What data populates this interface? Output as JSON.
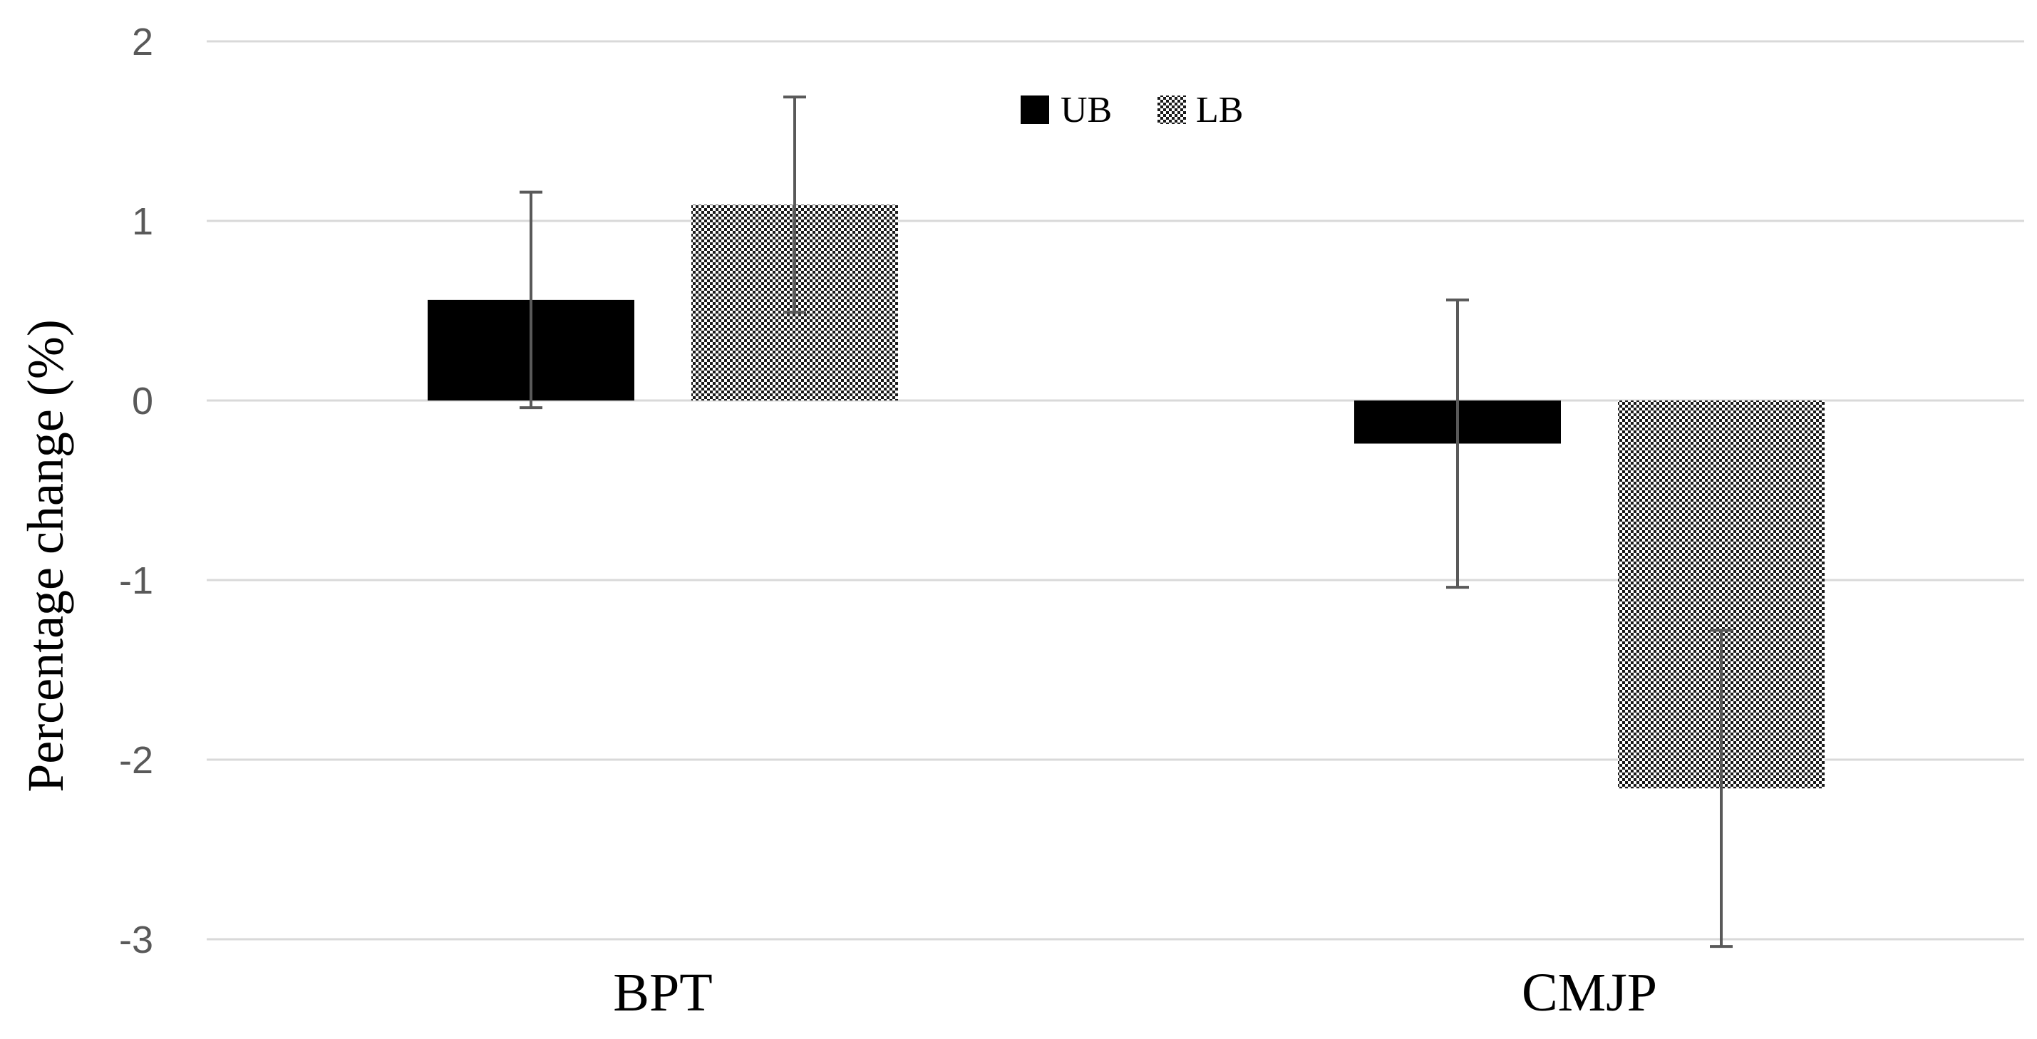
{
  "chart_data": {
    "type": "bar",
    "title": "",
    "xlabel": "",
    "ylabel": "Percentage change (%)",
    "categories": [
      "BPT",
      "CMJP"
    ],
    "ylim": [
      -3,
      2
    ],
    "yticks": [
      2,
      1,
      0,
      -1,
      -2,
      -3
    ],
    "grid": true,
    "legend_position": "top-center",
    "series": [
      {
        "name": "UB",
        "pattern": "solid",
        "color": "#000000",
        "values": [
          0.56,
          -0.24
        ],
        "errors": [
          0.6,
          0.8
        ]
      },
      {
        "name": "LB",
        "pattern": "checkered",
        "color": "#000000",
        "values": [
          1.09,
          -2.16
        ],
        "errors": [
          0.6,
          0.88
        ]
      }
    ]
  }
}
